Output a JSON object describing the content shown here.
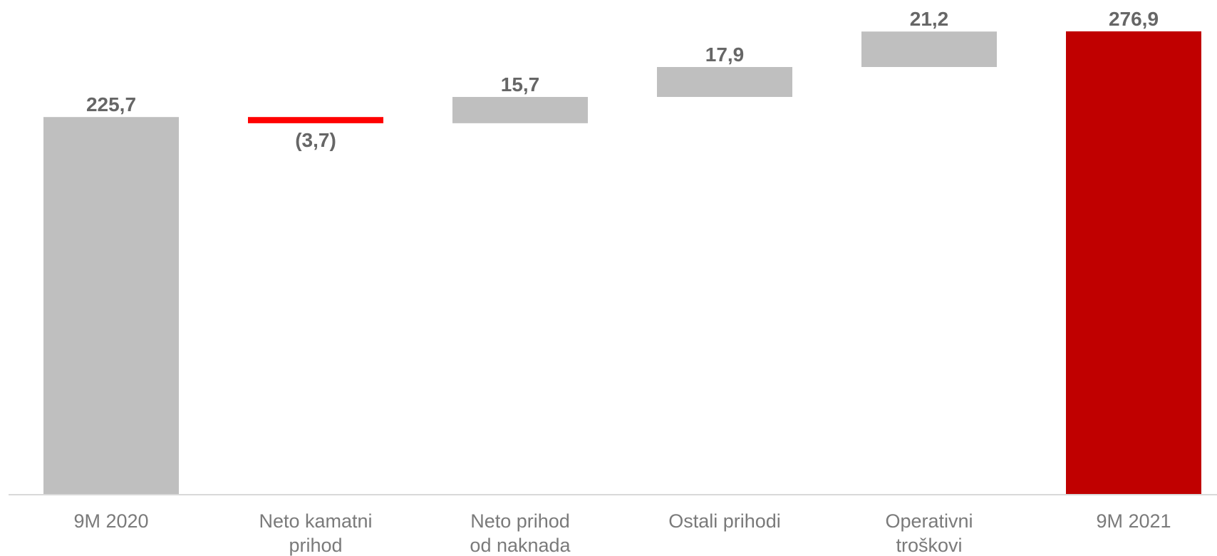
{
  "chart_data": {
    "type": "waterfall",
    "title": "",
    "xlabel": "",
    "ylabel": "",
    "ylim": [
      0,
      276.9
    ],
    "grid": false,
    "legend": "none",
    "colors": {
      "total_start": "#bfbfbf",
      "increase": "#bfbfbf",
      "decrease": "#ff0000",
      "total_end": "#c00000",
      "value_label": "#666666",
      "category_label": "#7a7a7a",
      "baseline": "#d9d9d9"
    },
    "points": [
      {
        "category": [
          "9M 2020"
        ],
        "value": 225.7,
        "label": "225,7",
        "kind": "total"
      },
      {
        "category": [
          "Neto kamatni",
          "prihod"
        ],
        "value": -3.7,
        "label": "(3,7)",
        "kind": "delta"
      },
      {
        "category": [
          "Neto prihod",
          "od naknada"
        ],
        "value": 15.7,
        "label": "15,7",
        "kind": "delta"
      },
      {
        "category": [
          "Ostali prihodi"
        ],
        "value": 17.9,
        "label": "17,9",
        "kind": "delta"
      },
      {
        "category": [
          "Operativni",
          "troškovi"
        ],
        "value": 21.2,
        "label": "21,2",
        "kind": "delta"
      },
      {
        "category": [
          "9M 2021"
        ],
        "value": 276.9,
        "label": "276,9",
        "kind": "total"
      }
    ]
  }
}
